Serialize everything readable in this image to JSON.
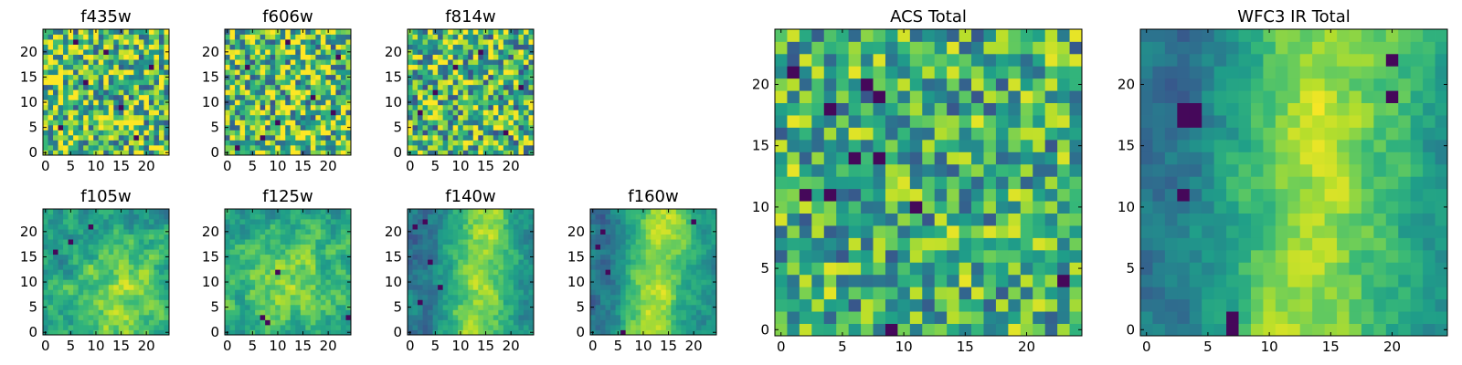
{
  "chart_data": [
    {
      "type": "heatmap",
      "title": "f435w",
      "grid_size": 25,
      "colormap": "viridis",
      "value_range": [
        0,
        1
      ],
      "xticks": [
        0,
        5,
        10,
        15,
        20
      ],
      "yticks": [
        0,
        5,
        10,
        15,
        20
      ],
      "xtick_labels": [
        "0",
        "5",
        "10",
        "15",
        "20"
      ],
      "ytick_labels": [
        "0",
        "5",
        "10",
        "15",
        "20"
      ],
      "field": {
        "noise": 0.85,
        "base": 0.7,
        "blob": null,
        "ridge": null,
        "dark_pixels": [
          [
            3,
            5
          ],
          [
            8,
            14
          ],
          [
            12,
            20
          ],
          [
            18,
            3
          ],
          [
            21,
            17
          ],
          [
            6,
            22
          ],
          [
            15,
            9
          ]
        ]
      }
    },
    {
      "type": "heatmap",
      "title": "f606w",
      "grid_size": 25,
      "colormap": "viridis",
      "value_range": [
        0,
        1
      ],
      "xticks": [
        0,
        5,
        10,
        15,
        20
      ],
      "yticks": [
        0,
        5,
        10,
        15,
        20
      ],
      "xtick_labels": [
        "0",
        "5",
        "10",
        "15",
        "20"
      ],
      "ytick_labels": [
        "0",
        "5",
        "10",
        "15",
        "20"
      ],
      "field": {
        "noise": 0.85,
        "base": 0.68,
        "blob": null,
        "ridge": null,
        "dark_pixels": [
          [
            21,
            8
          ],
          [
            7,
            3
          ],
          [
            12,
            22
          ],
          [
            4,
            17
          ],
          [
            17,
            11
          ],
          [
            10,
            6
          ],
          [
            22,
            19
          ],
          [
            2,
            1
          ]
        ]
      }
    },
    {
      "type": "heatmap",
      "title": "f814w",
      "grid_size": 25,
      "colormap": "viridis",
      "value_range": [
        0,
        1
      ],
      "xticks": [
        0,
        5,
        10,
        15,
        20
      ],
      "yticks": [
        0,
        5,
        10,
        15,
        20
      ],
      "xtick_labels": [
        "0",
        "5",
        "10",
        "15",
        "20"
      ],
      "ytick_labels": [
        "0",
        "5",
        "10",
        "15",
        "20"
      ],
      "field": {
        "noise": 0.85,
        "base": 0.66,
        "blob": null,
        "ridge": null,
        "dark_pixels": [
          [
            14,
            20
          ],
          [
            5,
            12
          ],
          [
            19,
            4
          ],
          [
            9,
            17
          ],
          [
            2,
            8
          ],
          [
            22,
            13
          ]
        ]
      }
    },
    {
      "type": "heatmap",
      "title": "f105w",
      "grid_size": 25,
      "colormap": "viridis",
      "value_range": [
        0,
        1
      ],
      "xticks": [
        0,
        5,
        10,
        15,
        20
      ],
      "yticks": [
        0,
        5,
        10,
        15,
        20
      ],
      "xtick_labels": [
        "0",
        "5",
        "10",
        "15",
        "20"
      ],
      "ytick_labels": [
        "0",
        "5",
        "10",
        "15",
        "20"
      ],
      "field": {
        "noise": 0.55,
        "base": 0.55,
        "blob": [
          15,
          7,
          7,
          0.3
        ],
        "ridge": null,
        "dark_pixels": [
          [
            9,
            21
          ],
          [
            2,
            16
          ],
          [
            5,
            18
          ]
        ]
      }
    },
    {
      "type": "heatmap",
      "title": "f125w",
      "grid_size": 25,
      "colormap": "viridis",
      "value_range": [
        0,
        1
      ],
      "xticks": [
        0,
        5,
        10,
        15,
        20
      ],
      "yticks": [
        0,
        5,
        10,
        15,
        20
      ],
      "xtick_labels": [
        "0",
        "5",
        "10",
        "15",
        "20"
      ],
      "ytick_labels": [
        "0",
        "5",
        "10",
        "15",
        "20"
      ],
      "field": {
        "noise": 0.55,
        "base": 0.55,
        "blob": [
          12,
          10,
          8,
          0.25
        ],
        "ridge": null,
        "dark_pixels": [
          [
            7,
            3
          ],
          [
            8,
            2
          ],
          [
            24,
            3
          ],
          [
            10,
            12
          ]
        ]
      }
    },
    {
      "type": "heatmap",
      "title": "f140w",
      "grid_size": 25,
      "colormap": "viridis",
      "value_range": [
        0,
        1
      ],
      "xticks": [
        0,
        5,
        10,
        15,
        20
      ],
      "yticks": [
        0,
        5,
        10,
        15,
        20
      ],
      "xtick_labels": [
        "0",
        "5",
        "10",
        "15",
        "20"
      ],
      "ytick_labels": [
        "0",
        "5",
        "10",
        "15",
        "20"
      ],
      "field": {
        "noise": 0.45,
        "base": 0.5,
        "blob": null,
        "ridge": [
          14,
          4,
          0.35
        ],
        "dark_pixels": [
          [
            1,
            21
          ],
          [
            3,
            22
          ],
          [
            4,
            14
          ],
          [
            2,
            6
          ],
          [
            6,
            9
          ]
        ]
      }
    },
    {
      "type": "heatmap",
      "title": "f160w",
      "grid_size": 25,
      "colormap": "viridis",
      "value_range": [
        0,
        1
      ],
      "xticks": [
        0,
        5,
        10,
        15,
        20
      ],
      "yticks": [
        0,
        5,
        10,
        15,
        20
      ],
      "xtick_labels": [
        "0",
        "5",
        "10",
        "15",
        "20"
      ],
      "ytick_labels": [
        "0",
        "5",
        "10",
        "15",
        "20"
      ],
      "field": {
        "noise": 0.4,
        "base": 0.5,
        "blob": null,
        "ridge": [
          13,
          4,
          0.38
        ],
        "dark_pixels": [
          [
            2,
            20
          ],
          [
            1,
            17
          ],
          [
            3,
            12
          ],
          [
            6,
            0
          ],
          [
            20,
            22
          ]
        ]
      }
    },
    {
      "type": "heatmap",
      "title": "ACS Total",
      "grid_size": 25,
      "colormap": "viridis",
      "value_range": [
        0,
        1
      ],
      "xticks": [
        0,
        5,
        10,
        15,
        20
      ],
      "yticks": [
        0,
        5,
        10,
        15,
        20
      ],
      "xtick_labels": [
        "0",
        "5",
        "10",
        "15",
        "20"
      ],
      "ytick_labels": [
        "0",
        "5",
        "10",
        "15",
        "20"
      ],
      "field": {
        "noise": 0.7,
        "base": 0.62,
        "blob": null,
        "ridge": null,
        "dark_pixels": [
          [
            1,
            21
          ],
          [
            7,
            20
          ],
          [
            8,
            19
          ],
          [
            4,
            18
          ],
          [
            6,
            14
          ],
          [
            8,
            14
          ],
          [
            2,
            11
          ],
          [
            4,
            11
          ],
          [
            11,
            10
          ],
          [
            9,
            0
          ],
          [
            23,
            4
          ]
        ]
      }
    },
    {
      "type": "heatmap",
      "title": "WFC3 IR Total",
      "grid_size": 25,
      "colormap": "viridis",
      "value_range": [
        0,
        1
      ],
      "xticks": [
        0,
        5,
        10,
        15,
        20
      ],
      "yticks": [
        0,
        5,
        10,
        15,
        20
      ],
      "xtick_labels": [
        "0",
        "5",
        "10",
        "15",
        "20"
      ],
      "ytick_labels": [
        "0",
        "5",
        "10",
        "15",
        "20"
      ],
      "field": {
        "noise": 0.4,
        "base": 0.48,
        "blob": null,
        "ridge": [
          14,
          5,
          0.38
        ],
        "dark_pixels": [
          [
            3,
            18
          ],
          [
            4,
            18
          ],
          [
            3,
            17
          ],
          [
            4,
            17
          ],
          [
            3,
            11
          ],
          [
            7,
            1
          ],
          [
            7,
            0
          ],
          [
            20,
            22
          ],
          [
            20,
            19
          ]
        ]
      }
    }
  ]
}
